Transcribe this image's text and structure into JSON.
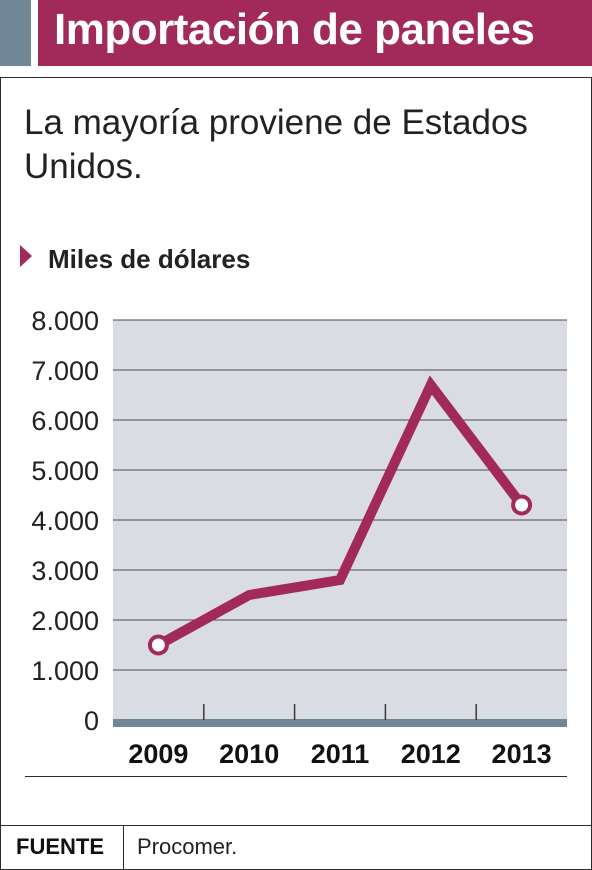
{
  "header": {
    "title": "Importación de paneles",
    "accent_color": "#a12a5a",
    "side_color": "#6f8797"
  },
  "subtitle": "La mayoría proviene de Estados Unidos.",
  "unit_label": "Miles de dólares",
  "footer": {
    "source_key": "FUENTE",
    "source_value": "Procomer."
  },
  "chart_data": {
    "type": "line",
    "title": "",
    "xlabel": "",
    "ylabel": "",
    "categories": [
      "2009",
      "2010",
      "2011",
      "2012",
      "2013"
    ],
    "series": [
      {
        "values": [
          1500,
          2500,
          2800,
          6700,
          4300
        ],
        "color": "#a12a5a"
      }
    ],
    "markers_on": [
      "2009",
      "2013"
    ],
    "ylim": [
      0,
      8000
    ],
    "yticks": [
      0,
      1000,
      2000,
      3000,
      4000,
      5000,
      6000,
      7000,
      8000
    ],
    "ytick_labels": [
      "0",
      "1.000",
      "2.000",
      "3.000",
      "4.000",
      "5.000",
      "6.000",
      "7.000",
      "8.000"
    ],
    "grid": true,
    "plot_background": "#d9dde3",
    "axis_color": "#6f8797",
    "legend": "none"
  }
}
